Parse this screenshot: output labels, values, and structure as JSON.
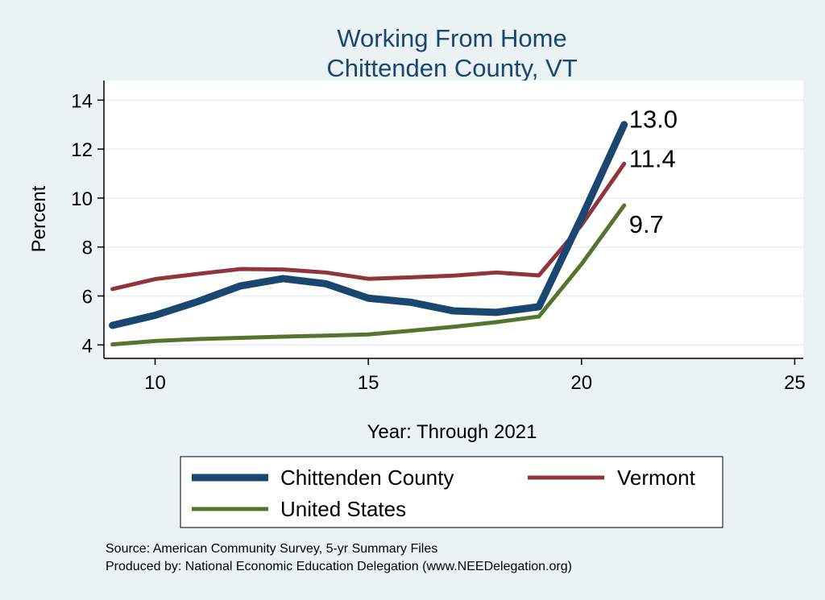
{
  "chart_data": {
    "type": "line",
    "title": [
      "Working From Home",
      "Chittenden County, VT"
    ],
    "xlabel": "Year: Through 2021",
    "ylabel": "Percent",
    "xlim": [
      8.8,
      25.2
    ],
    "ylim": [
      3.45,
      14.8
    ],
    "xticks": [
      10,
      15,
      20,
      25
    ],
    "yticks": [
      4,
      6,
      8,
      10,
      12,
      14
    ],
    "grid": true,
    "legend_position": "bottom",
    "x": [
      9,
      10,
      11,
      12,
      13,
      14,
      15,
      16,
      17,
      18,
      19,
      20,
      21
    ],
    "series": [
      {
        "name": "Chittenden County",
        "color": "#1a476f",
        "width": 9,
        "values": [
          4.8,
          5.21,
          5.77,
          6.41,
          6.71,
          6.5,
          5.91,
          5.74,
          5.39,
          5.33,
          5.56,
          9.2,
          13.0
        ],
        "end_label": "13.0"
      },
      {
        "name": "Vermont",
        "color": "#90353b",
        "width": 5,
        "values": [
          6.28,
          6.69,
          6.9,
          7.1,
          7.08,
          6.96,
          6.7,
          6.76,
          6.83,
          6.96,
          6.84,
          8.9,
          11.4
        ],
        "end_label": "11.4"
      },
      {
        "name": "United States",
        "color": "#55752f",
        "width": 5,
        "values": [
          4.02,
          4.16,
          4.24,
          4.29,
          4.34,
          4.38,
          4.43,
          4.58,
          4.74,
          4.93,
          5.16,
          7.3,
          9.7
        ],
        "end_label": "9.7"
      }
    ],
    "notes": [
      "Source: American Community Survey, 5-yr Summary Files",
      "Produced by: National Economic Education Delegation (www.NEEDelegation.org)"
    ]
  }
}
